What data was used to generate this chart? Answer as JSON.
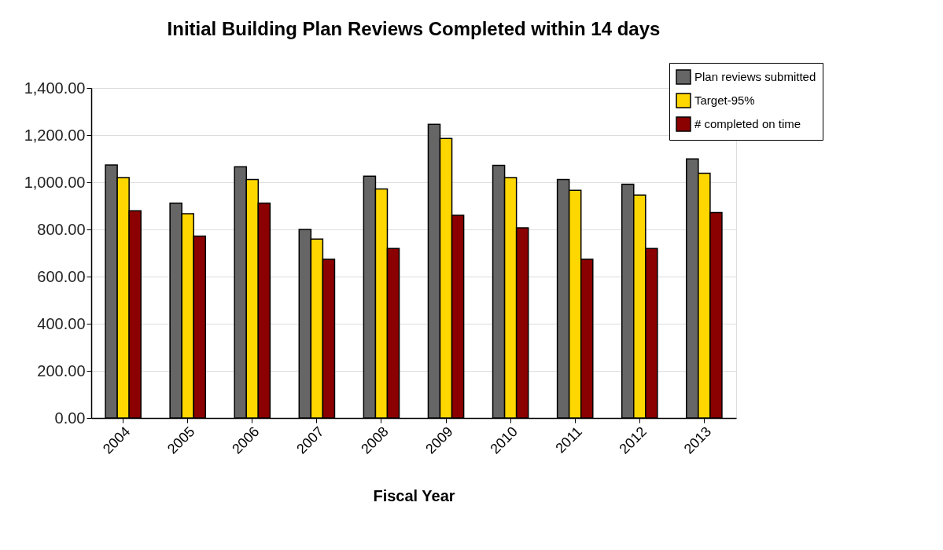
{
  "chart_data": {
    "type": "bar",
    "title": "Initial Building Plan Reviews Completed within 14 days",
    "xlabel": "Fiscal Year",
    "categories": [
      "2004",
      "2005",
      "2006",
      "2007",
      "2008",
      "2009",
      "2010",
      "2011",
      "2012",
      "2013"
    ],
    "series": [
      {
        "name": "Plan reviews submitted",
        "color": "#666666",
        "values": [
          1073,
          912,
          1066,
          800,
          1026,
          1246,
          1072,
          1012,
          992,
          1099
        ]
      },
      {
        "name": "Target-95%",
        "color": "#ffd700",
        "values": [
          1020,
          867,
          1012,
          759,
          972,
          1186,
          1020,
          966,
          946,
          1038
        ]
      },
      {
        "name": "# completed on time",
        "color": "#8b0000",
        "values": [
          879,
          772,
          912,
          673,
          719,
          860,
          807,
          673,
          719,
          872
        ]
      }
    ],
    "ylim": [
      0,
      1400
    ],
    "yticks": [
      {
        "value": 0,
        "label": "0.00"
      },
      {
        "value": 200,
        "label": "200.00"
      },
      {
        "value": 400,
        "label": "400.00"
      },
      {
        "value": 600,
        "label": "600.00"
      },
      {
        "value": 800,
        "label": "800.00"
      },
      {
        "value": 1000,
        "label": "1,000.00"
      },
      {
        "value": 1200,
        "label": "1,200.00"
      },
      {
        "value": 1400,
        "label": "1,400.00"
      }
    ],
    "grid": "y",
    "legend": "top right"
  }
}
